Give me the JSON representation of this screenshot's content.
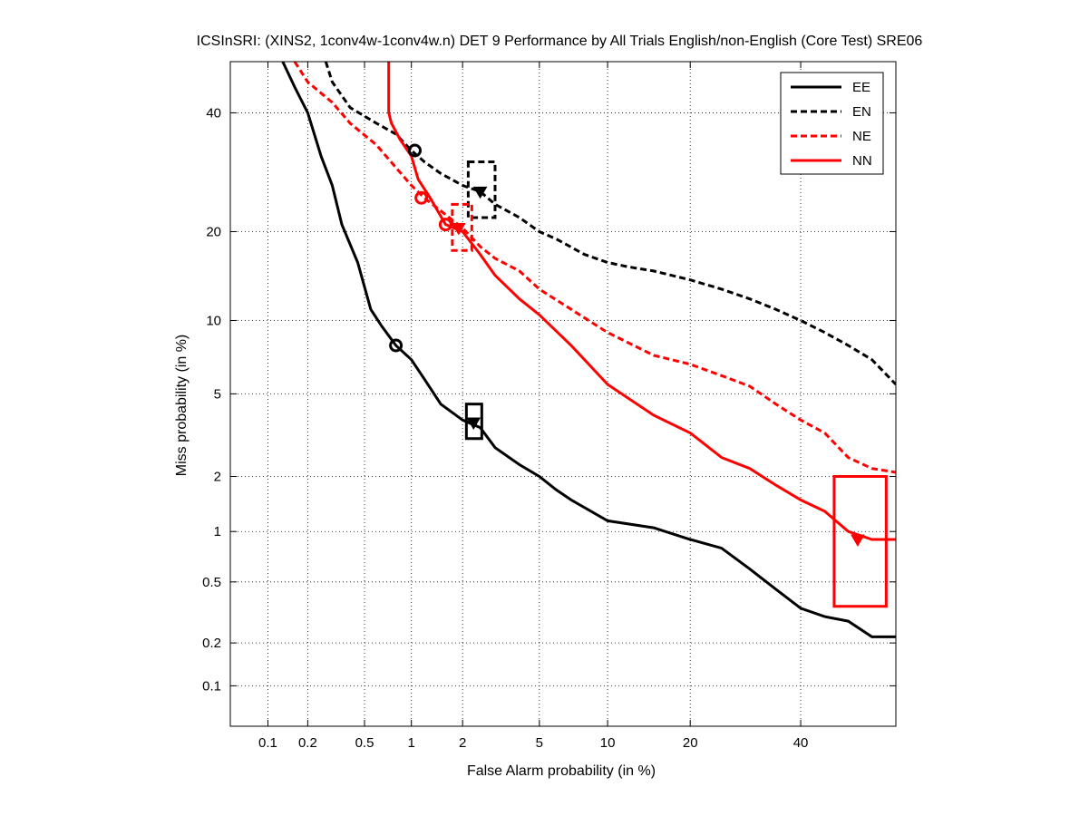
{
  "chart_data": {
    "type": "line",
    "scale": "DET (normal deviate)",
    "title": "ICSInSRI: (XINS2, 1conv4w-1conv4w.n) DET 9 Performance by All Trials English/non-English (Core Test) SRE06",
    "xlabel": "False Alarm probability (in %)",
    "ylabel": "Miss probability (in %)",
    "xlim": [
      0.05,
      60
    ],
    "ylim": [
      0.05,
      50
    ],
    "x_ticks": [
      {
        "value": 0.1,
        "label": "0.1"
      },
      {
        "value": 0.2,
        "label": "0.2"
      },
      {
        "value": 0.5,
        "label": "0.5"
      },
      {
        "value": 1,
        "label": "1"
      },
      {
        "value": 2,
        "label": "2"
      },
      {
        "value": 5,
        "label": "5"
      },
      {
        "value": 10,
        "label": "10"
      },
      {
        "value": 20,
        "label": "20"
      },
      {
        "value": 40,
        "label": "40"
      }
    ],
    "y_ticks": [
      {
        "value": 0.1,
        "label": "0.1"
      },
      {
        "value": 0.2,
        "label": "0.2"
      },
      {
        "value": 0.5,
        "label": "0.5"
      },
      {
        "value": 1,
        "label": "1"
      },
      {
        "value": 2,
        "label": "2"
      },
      {
        "value": 5,
        "label": "5"
      },
      {
        "value": 10,
        "label": "10"
      },
      {
        "value": 20,
        "label": "20"
      },
      {
        "value": 40,
        "label": "40"
      }
    ],
    "grid": true,
    "legend_position": "top-right",
    "series": [
      {
        "name": "EE",
        "color": "#000000",
        "dash": "solid",
        "points": [
          [
            0.13,
            50
          ],
          [
            0.16,
            45
          ],
          [
            0.2,
            40
          ],
          [
            0.25,
            32
          ],
          [
            0.3,
            27
          ],
          [
            0.35,
            21
          ],
          [
            0.45,
            16
          ],
          [
            0.55,
            11
          ],
          [
            0.65,
            9.5
          ],
          [
            0.8,
            8
          ],
          [
            1,
            7
          ],
          [
            1.2,
            5.8
          ],
          [
            1.5,
            4.5
          ],
          [
            2,
            3.8
          ],
          [
            2.5,
            3.5
          ],
          [
            3,
            2.8
          ],
          [
            4,
            2.3
          ],
          [
            5,
            2.0
          ],
          [
            6,
            1.7
          ],
          [
            7,
            1.5
          ],
          [
            10,
            1.15
          ],
          [
            15,
            1.05
          ],
          [
            20,
            0.9
          ],
          [
            25,
            0.8
          ],
          [
            30,
            0.6
          ],
          [
            35,
            0.45
          ],
          [
            40,
            0.34
          ],
          [
            45,
            0.3
          ],
          [
            50,
            0.28
          ],
          [
            55,
            0.22
          ],
          [
            60,
            0.22
          ]
        ],
        "min_dcf": [
          0.8,
          8
        ],
        "act_dcf": [
          2.3,
          3.7
        ],
        "ci_box": {
          "x": [
            2.1,
            2.55
          ],
          "y": [
            3.1,
            4.5
          ]
        }
      },
      {
        "name": "EN",
        "color": "#000000",
        "dash": "dashed",
        "points": [
          [
            0.27,
            50
          ],
          [
            0.3,
            46
          ],
          [
            0.4,
            41
          ],
          [
            0.6,
            38
          ],
          [
            0.8,
            36
          ],
          [
            1,
            33
          ],
          [
            1.2,
            31
          ],
          [
            1.5,
            29
          ],
          [
            2,
            27
          ],
          [
            2.5,
            26
          ],
          [
            3,
            24
          ],
          [
            4,
            22
          ],
          [
            5,
            20
          ],
          [
            6,
            19
          ],
          [
            8,
            17
          ],
          [
            10,
            16
          ],
          [
            12,
            15.5
          ],
          [
            15,
            15
          ],
          [
            20,
            14
          ],
          [
            25,
            13
          ],
          [
            30,
            12
          ],
          [
            35,
            11
          ],
          [
            40,
            10
          ],
          [
            45,
            9
          ],
          [
            50,
            8
          ],
          [
            55,
            7
          ],
          [
            60,
            5.5
          ]
        ],
        "min_dcf": [
          1.05,
          33
        ],
        "act_dcf": [
          2.5,
          26
        ],
        "ci_box": {
          "x": [
            2.15,
            3.0
          ],
          "y": [
            22,
            31
          ]
        }
      },
      {
        "name": "NE",
        "color": "#ff0000",
        "dash": "dashed",
        "points": [
          [
            0.16,
            50
          ],
          [
            0.2,
            46
          ],
          [
            0.3,
            42
          ],
          [
            0.4,
            38
          ],
          [
            0.6,
            34
          ],
          [
            0.8,
            30
          ],
          [
            1,
            27
          ],
          [
            1.2,
            25
          ],
          [
            1.5,
            23
          ],
          [
            2,
            20.5
          ],
          [
            2.5,
            18
          ],
          [
            3,
            16.5
          ],
          [
            4,
            15
          ],
          [
            5,
            13
          ],
          [
            7,
            11
          ],
          [
            10,
            9
          ],
          [
            15,
            7.3
          ],
          [
            20,
            6.7
          ],
          [
            25,
            6
          ],
          [
            30,
            5.4
          ],
          [
            35,
            4.5
          ],
          [
            40,
            3.8
          ],
          [
            45,
            3.3
          ],
          [
            50,
            2.5
          ],
          [
            55,
            2.2
          ],
          [
            60,
            2.1
          ]
        ],
        "min_dcf": [
          1.15,
          25
        ],
        "act_dcf": [
          1.9,
          20.5
        ],
        "ci_box": {
          "x": [
            1.75,
            2.25
          ],
          "y": [
            17.5,
            24
          ]
        }
      },
      {
        "name": "NN",
        "color": "#ff0000",
        "dash": "solid",
        "points": [
          [
            0.72,
            50
          ],
          [
            0.72,
            40
          ],
          [
            0.75,
            38
          ],
          [
            0.85,
            35
          ],
          [
            1,
            32
          ],
          [
            1.1,
            28
          ],
          [
            1.3,
            25
          ],
          [
            1.6,
            21
          ],
          [
            2,
            20
          ],
          [
            2.5,
            17
          ],
          [
            3,
            14.5
          ],
          [
            4,
            12
          ],
          [
            5,
            10.5
          ],
          [
            7,
            8
          ],
          [
            10,
            5.5
          ],
          [
            15,
            4
          ],
          [
            20,
            3.3
          ],
          [
            25,
            2.5
          ],
          [
            30,
            2.2
          ],
          [
            35,
            1.8
          ],
          [
            40,
            1.5
          ],
          [
            45,
            1.3
          ],
          [
            50,
            1.0
          ],
          [
            55,
            0.9
          ],
          [
            60,
            0.9
          ]
        ],
        "min_dcf": [
          1.6,
          21
        ],
        "act_dcf": [
          52,
          0.9
        ],
        "ci_box": {
          "x": [
            47,
            58
          ],
          "y": [
            0.35,
            2
          ]
        }
      }
    ]
  }
}
